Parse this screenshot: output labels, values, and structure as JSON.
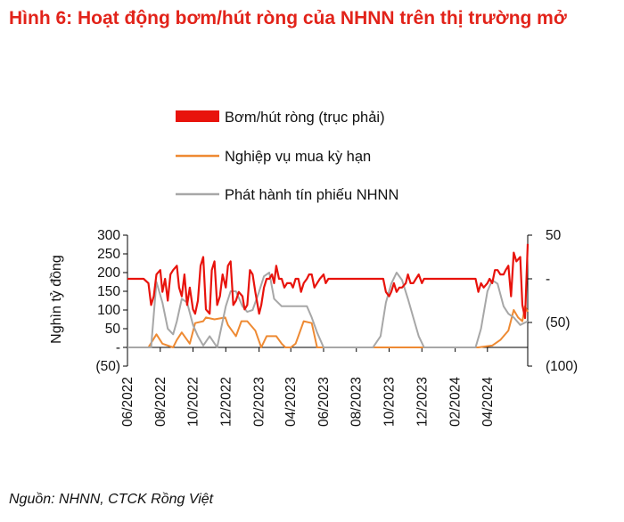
{
  "title": "Hình 6: Hoạt động bơm/hút ròng của NHNN trên thị trường mở",
  "source": "Nguồn: NHNN, CTCK Rồng Việt",
  "chart_data": {
    "type": "line",
    "ylabel": "Nghìn tỷ đồng",
    "left_axis": {
      "ylim": [
        -50,
        300
      ],
      "ticks": [
        "300",
        "250",
        "200",
        "150",
        "100",
        "50",
        "-",
        "(50)"
      ],
      "tick_values": [
        300,
        250,
        200,
        150,
        100,
        50,
        0,
        -50
      ]
    },
    "right_axis": {
      "ylim": [
        -100,
        50
      ],
      "ticks": [
        "50",
        "-",
        "(50)",
        "(100)"
      ],
      "tick_values": [
        50,
        0,
        -50,
        -100
      ]
    },
    "x_ticks": [
      "06/2022",
      "08/2022",
      "10/2022",
      "12/2022",
      "02/2023",
      "04/2023",
      "06/2023",
      "08/2023",
      "10/2023",
      "12/2023",
      "02/2024",
      "04/2024"
    ],
    "x_range": [
      "2022-06-01",
      "2024-06-15"
    ],
    "legend": [
      "Bơm/hút ròng (trục phải)",
      "Nghiệp vụ mua kỳ hạn",
      "Phát hành tín phiếu NHNN"
    ],
    "colors": {
      "net": "#e8130c",
      "omo": "#ee8a33",
      "bill": "#a7a7a7"
    },
    "series": [
      {
        "name": "Nghiệp vụ mua kỳ hạn",
        "axis": "left",
        "x": [
          "2022-06-01",
          "2022-07-10",
          "2022-07-25",
          "2022-08-05",
          "2022-08-25",
          "2022-09-01",
          "2022-09-10",
          "2022-09-25",
          "2022-10-05",
          "2022-10-20",
          "2022-10-25",
          "2022-11-10",
          "2022-11-30",
          "2022-12-05",
          "2022-12-20",
          "2022-12-30",
          "2023-01-10",
          "2023-01-25",
          "2023-02-05",
          "2023-02-15",
          "2023-03-05",
          "2023-03-15",
          "2023-03-22",
          "2023-04-01",
          "2023-04-10",
          "2023-04-15",
          "2023-04-25",
          "2023-05-10",
          "2023-05-20",
          "2023-06-01",
          "2023-10-01",
          "2023-12-31",
          "2024-03-15",
          "2024-04-10",
          "2024-04-25",
          "2024-05-10",
          "2024-05-20",
          "2024-05-28",
          "2024-06-05",
          "2024-06-10",
          "2024-06-15"
        ],
        "y": [
          0,
          0,
          35,
          10,
          0,
          20,
          40,
          10,
          65,
          70,
          80,
          75,
          80,
          60,
          30,
          70,
          70,
          45,
          0,
          30,
          30,
          10,
          0,
          0,
          10,
          30,
          70,
          65,
          0,
          0,
          0,
          0,
          0,
          5,
          20,
          45,
          100,
          80,
          70,
          110,
          95
        ]
      },
      {
        "name": "Phát hành tín phiếu NHNN",
        "axis": "left",
        "x": [
          "2022-06-01",
          "2022-07-15",
          "2022-07-25",
          "2022-08-05",
          "2022-08-15",
          "2022-08-25",
          "2022-09-01",
          "2022-09-10",
          "2022-09-20",
          "2022-10-01",
          "2022-10-10",
          "2022-10-20",
          "2022-11-01",
          "2022-11-15",
          "2022-12-01",
          "2022-12-10",
          "2022-12-20",
          "2023-01-01",
          "2023-01-10",
          "2023-01-20",
          "2023-01-31",
          "2023-02-10",
          "2023-02-20",
          "2023-03-01",
          "2023-03-15",
          "2023-04-01",
          "2023-04-15",
          "2023-05-01",
          "2023-05-10",
          "2023-05-20",
          "2023-06-01",
          "2023-06-10",
          "2023-06-30",
          "2023-09-01",
          "2023-09-15",
          "2023-09-25",
          "2023-10-05",
          "2023-10-15",
          "2023-10-25",
          "2023-11-05",
          "2023-11-15",
          "2023-11-25",
          "2023-12-05",
          "2023-12-15",
          "2023-12-31",
          "2024-03-10",
          "2024-03-20",
          "2024-04-01",
          "2024-04-10",
          "2024-04-20",
          "2024-05-01",
          "2024-05-10",
          "2024-05-20",
          "2024-06-01",
          "2024-06-15"
        ],
        "y": [
          0,
          0,
          175,
          120,
          50,
          35,
          70,
          130,
          120,
          60,
          30,
          5,
          30,
          0,
          110,
          150,
          150,
          110,
          95,
          100,
          145,
          190,
          200,
          130,
          110,
          110,
          110,
          110,
          80,
          40,
          0,
          0,
          0,
          0,
          30,
          120,
          170,
          200,
          180,
          130,
          80,
          30,
          0,
          0,
          0,
          0,
          50,
          150,
          180,
          170,
          110,
          90,
          80,
          60,
          70
        ]
      },
      {
        "name": "Bơm/hút ròng (trục phải)",
        "axis": "right",
        "x": [
          "2022-06-01",
          "2022-06-15",
          "2022-07-01",
          "2022-07-10",
          "2022-07-15",
          "2022-07-20",
          "2022-07-25",
          "2022-08-01",
          "2022-08-05",
          "2022-08-10",
          "2022-08-15",
          "2022-08-20",
          "2022-08-25",
          "2022-09-01",
          "2022-09-05",
          "2022-09-10",
          "2022-09-15",
          "2022-09-20",
          "2022-09-25",
          "2022-10-01",
          "2022-10-05",
          "2022-10-10",
          "2022-10-15",
          "2022-10-20",
          "2022-10-25",
          "2022-11-01",
          "2022-11-05",
          "2022-11-10",
          "2022-11-15",
          "2022-11-20",
          "2022-11-25",
          "2022-12-01",
          "2022-12-05",
          "2022-12-10",
          "2022-12-15",
          "2022-12-20",
          "2022-12-25",
          "2023-01-01",
          "2023-01-05",
          "2023-01-10",
          "2023-01-15",
          "2023-01-20",
          "2023-01-25",
          "2023-02-01",
          "2023-02-05",
          "2023-02-10",
          "2023-02-15",
          "2023-02-20",
          "2023-02-25",
          "2023-03-01",
          "2023-03-05",
          "2023-03-10",
          "2023-03-15",
          "2023-03-20",
          "2023-03-25",
          "2023-04-01",
          "2023-04-05",
          "2023-04-10",
          "2023-04-15",
          "2023-04-20",
          "2023-04-25",
          "2023-05-01",
          "2023-05-05",
          "2023-05-10",
          "2023-05-15",
          "2023-05-20",
          "2023-05-25",
          "2023-06-01",
          "2023-06-05",
          "2023-06-10",
          "2023-06-20",
          "2023-09-20",
          "2023-09-25",
          "2023-10-01",
          "2023-10-05",
          "2023-10-10",
          "2023-10-15",
          "2023-10-20",
          "2023-10-25",
          "2023-11-01",
          "2023-11-05",
          "2023-11-10",
          "2023-11-15",
          "2023-11-20",
          "2023-11-25",
          "2023-12-01",
          "2023-12-05",
          "2023-12-10",
          "2023-12-15",
          "2023-12-20",
          "2024-01-05",
          "2024-01-20",
          "2024-02-05",
          "2024-02-25",
          "2024-03-10",
          "2024-03-15",
          "2024-03-20",
          "2024-03-25",
          "2024-04-01",
          "2024-04-05",
          "2024-04-10",
          "2024-04-15",
          "2024-04-20",
          "2024-04-25",
          "2024-05-01",
          "2024-05-05",
          "2024-05-10",
          "2024-05-15",
          "2024-05-20",
          "2024-05-25",
          "2024-06-01",
          "2024-06-05",
          "2024-06-10",
          "2024-06-15"
        ],
        "y": [
          0,
          0,
          0,
          -5,
          -30,
          -20,
          5,
          10,
          -15,
          0,
          -25,
          5,
          10,
          15,
          -10,
          -20,
          5,
          -30,
          -10,
          -35,
          -40,
          -25,
          15,
          25,
          -35,
          -40,
          10,
          20,
          -30,
          -20,
          5,
          -10,
          15,
          20,
          -30,
          -25,
          -15,
          -20,
          -35,
          -30,
          10,
          5,
          -15,
          -40,
          -30,
          -10,
          0,
          0,
          5,
          -5,
          15,
          0,
          0,
          -10,
          -5,
          -5,
          -10,
          0,
          0,
          -15,
          -5,
          0,
          5,
          5,
          -10,
          -5,
          0,
          5,
          -5,
          0,
          0,
          0,
          -15,
          -20,
          -15,
          -5,
          -15,
          -10,
          -10,
          -5,
          5,
          -5,
          -5,
          0,
          5,
          -5,
          0,
          0,
          0,
          0,
          0,
          0,
          0,
          0,
          0,
          -15,
          -5,
          -10,
          -5,
          0,
          -5,
          10,
          10,
          5,
          5,
          10,
          15,
          -20,
          30,
          20,
          25,
          -30,
          -45,
          40
        ]
      }
    ]
  }
}
